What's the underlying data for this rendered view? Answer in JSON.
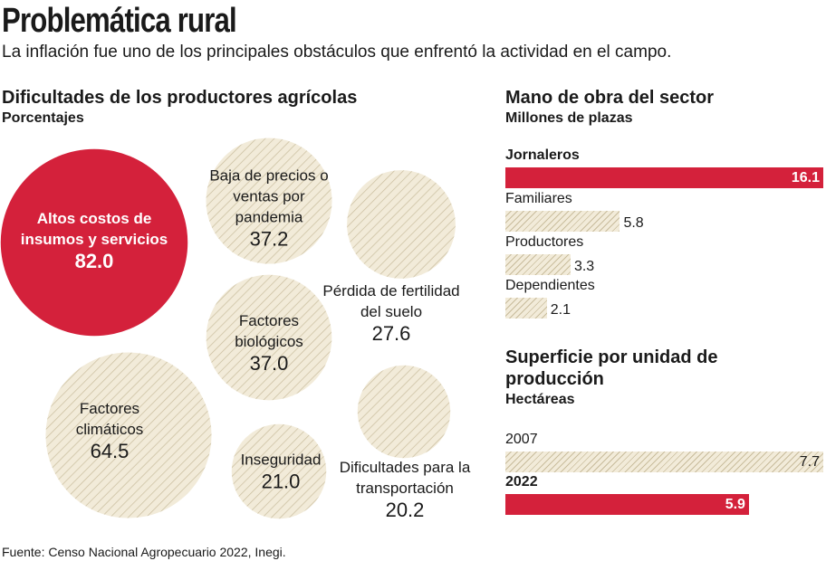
{
  "title": "Problemática rural",
  "subtitle": "La inflación fue uno de los principales obstáculos que enfrentó la actividad en el campo.",
  "source": "Fuente: Censo Nacional Agropecuario 2022, Inegi.",
  "chart_data": [
    {
      "type": "bubble",
      "title": "Dificultades de los productores agrícolas",
      "subtitle": "Porcentajes",
      "categories": [
        "Altos costos de insumos y servicios",
        "Baja de precios o ventas por pandemia",
        "Pérdida de fertilidad del suelo",
        "Factores biológicos",
        "Factores climáticos",
        "Inseguridad",
        "Dificultades para la transportación"
      ],
      "values": [
        82.0,
        37.2,
        27.6,
        37.0,
        64.5,
        21.0,
        20.2
      ],
      "value_labels": [
        "82.0",
        "37.2",
        "27.6",
        "37.0",
        "64.5",
        "21.0",
        "20.2"
      ],
      "highlight": [
        true,
        false,
        false,
        false,
        false,
        false,
        false
      ],
      "highlight_color": "#d4213b",
      "color": "#f2ebd9"
    },
    {
      "type": "hbar",
      "title": "Mano de obra del sector",
      "subtitle": "Millones de plazas",
      "categories": [
        "Jornaleros",
        "Familiares",
        "Productores",
        "Dependientes"
      ],
      "values": [
        16.1,
        5.8,
        3.3,
        2.1
      ],
      "highlight": [
        true,
        false,
        false,
        false
      ],
      "highlight_color": "#d4213b",
      "color": "#f2ebd9"
    },
    {
      "type": "hbar",
      "title": "Superficie por unidad de producción",
      "subtitle": "Hectáreas",
      "categories": [
        "2007",
        "2022"
      ],
      "values": [
        7.7,
        5.9
      ],
      "highlight": [
        false,
        true
      ],
      "highlight_color": "#d4213b",
      "color": "#f2ebd9"
    }
  ]
}
